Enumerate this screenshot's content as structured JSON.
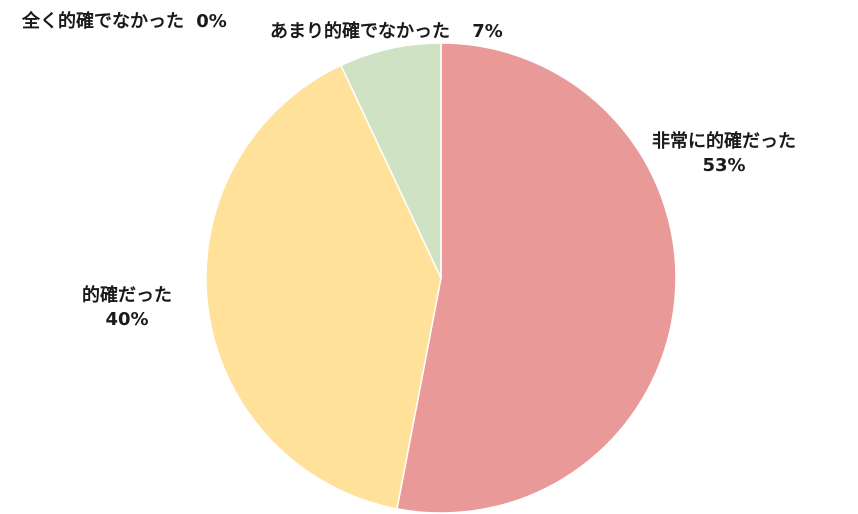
{
  "chart_data": {
    "type": "pie",
    "title": "",
    "slices": [
      {
        "label": "非常に的確だった",
        "value": 53,
        "value_label": "53%",
        "color": "#EA9999"
      },
      {
        "label": "的確だった",
        "value": 40,
        "value_label": "40%",
        "color": "#FFE199"
      },
      {
        "label": "あまり的確でなかった",
        "value": 7,
        "value_label": "7%",
        "color": "#D0E2C4"
      },
      {
        "label": "全く的確でなかった",
        "value": 0,
        "value_label": "0%",
        "color": "#C9DAF8"
      }
    ],
    "start": "12 o'clock",
    "direction": "clockwise",
    "slice_border_color": "#ffffff",
    "legend": "none"
  }
}
